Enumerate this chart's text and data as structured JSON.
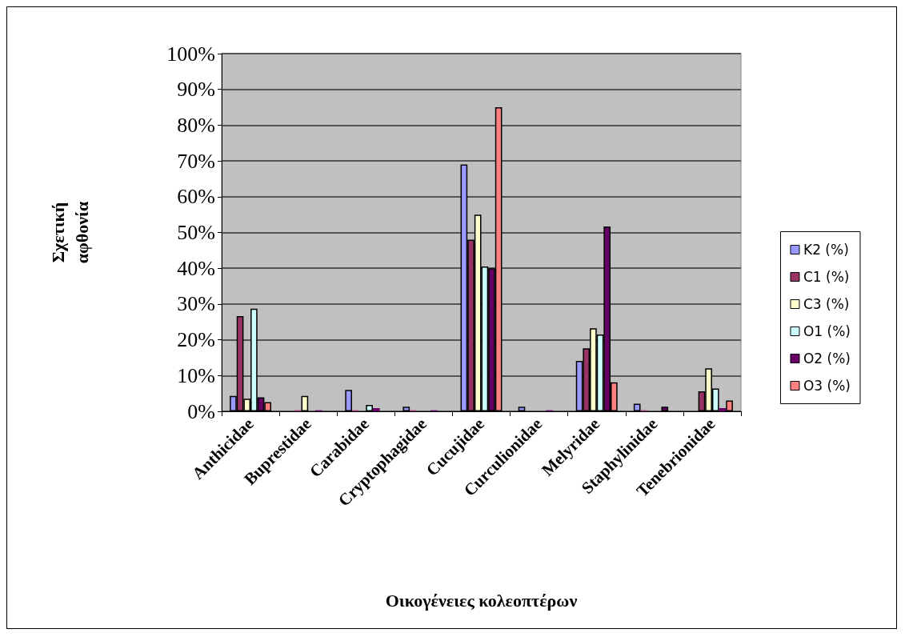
{
  "chart_data": {
    "type": "bar",
    "xlabel": "Οικογένειες κολεοπτέρων",
    "ylabel": "Σχετική αφθονία",
    "categories": [
      "Anthicidae",
      "Buprestidae",
      "Carabidae",
      "Cryptophagidae",
      "Cucujidae",
      "Curculionidae",
      "Melyridae",
      "Staphylinidae",
      "Tenebrionidae"
    ],
    "series": [
      {
        "name": "K2 (%)",
        "color": "#9999ff",
        "values": [
          4.3,
          0,
          6.0,
          1.3,
          69,
          1.3,
          14.1,
          2.1,
          0
        ]
      },
      {
        "name": "C1 (%)",
        "color": "#993366",
        "values": [
          26.6,
          0.3,
          0.3,
          0.3,
          48,
          0,
          17.6,
          0.3,
          5.6
        ]
      },
      {
        "name": "C3 (%)",
        "color": "#ffffcc",
        "values": [
          3.5,
          4.3,
          null,
          0,
          55,
          0,
          23.2,
          0,
          12
        ]
      },
      {
        "name": "O1 (%)",
        "color": "#ccffff",
        "values": [
          28.7,
          0,
          1.8,
          0,
          40.5,
          null,
          21.5,
          0,
          6.4
        ]
      },
      {
        "name": "O2 (%)",
        "color": "#660066",
        "values": [
          3.9,
          0.3,
          0.9,
          0.3,
          40,
          0.3,
          51.7,
          1.3,
          0.9
        ]
      },
      {
        "name": "O3 (%)",
        "color": "#ff8080",
        "values": [
          2.6,
          0,
          0,
          0,
          85,
          0,
          8.1,
          0,
          3.0
        ]
      }
    ],
    "ylim": [
      0,
      100
    ],
    "yticks": [
      {
        "value": 0,
        "label": "0%"
      },
      {
        "value": 10,
        "label": "10%"
      },
      {
        "value": 20,
        "label": "20%"
      },
      {
        "value": 30,
        "label": "30%"
      },
      {
        "value": 40,
        "label": "40%"
      },
      {
        "value": 50,
        "label": "50%"
      },
      {
        "value": 60,
        "label": "60%"
      },
      {
        "value": 70,
        "label": "70%"
      },
      {
        "value": 80,
        "label": "80%"
      },
      {
        "value": 90,
        "label": "90%"
      },
      {
        "value": 100,
        "label": "100%"
      }
    ],
    "grid": "y",
    "legend": "right"
  }
}
